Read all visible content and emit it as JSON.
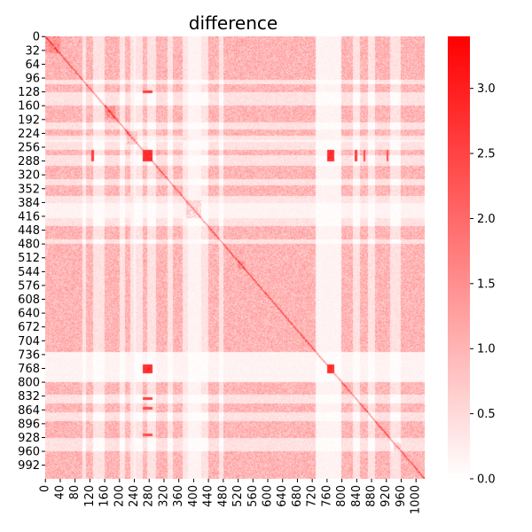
{
  "chart_data": {
    "type": "heatmap",
    "title": "difference",
    "xlabel": "",
    "ylabel": "",
    "n": 1024,
    "x_ticks": [
      "0",
      "40",
      "80",
      "120",
      "160",
      "200",
      "240",
      "280",
      "320",
      "360",
      "400",
      "440",
      "480",
      "520",
      "560",
      "600",
      "640",
      "680",
      "720",
      "760",
      "800",
      "840",
      "880",
      "920",
      "960",
      "1000"
    ],
    "y_ticks": [
      "0",
      "32",
      "64",
      "96",
      "128",
      "160",
      "192",
      "224",
      "256",
      "288",
      "320",
      "352",
      "384",
      "416",
      "448",
      "480",
      "512",
      "544",
      "576",
      "608",
      "640",
      "672",
      "704",
      "736",
      "768",
      "800",
      "832",
      "864",
      "896",
      "928",
      "960",
      "992"
    ],
    "colorbar": {
      "min": 0.0,
      "max": 3.4,
      "ticks": [
        "0.0",
        "0.5",
        "1.0",
        "1.5",
        "2.0",
        "2.5",
        "3.0"
      ],
      "low_color": "#ffffff",
      "high_color": "#ff0000"
    },
    "dense_bands": [
      [
        0,
        100
      ],
      [
        110,
        130
      ],
      [
        160,
        200
      ],
      [
        215,
        240
      ],
      [
        262,
        275
      ],
      [
        300,
        330
      ],
      [
        345,
        385
      ],
      [
        440,
        470
      ],
      [
        480,
        730
      ],
      [
        800,
        830
      ],
      [
        850,
        870
      ],
      [
        890,
        930
      ],
      [
        960,
        1024
      ]
    ],
    "sparse_bands": [
      [
        370,
        420
      ],
      [
        230,
        245
      ],
      [
        730,
        800
      ]
    ],
    "diagonal_blocks": [
      [
        0,
        40
      ],
      [
        160,
        190
      ],
      [
        220,
        250
      ],
      [
        380,
        420
      ],
      [
        520,
        540
      ],
      [
        940,
        960
      ]
    ],
    "hot_spots": [
      {
        "rows": [
          262,
          290
        ],
        "cols": [
          262,
          290
        ],
        "value": 3.0
      },
      {
        "rows": [
          262,
          290
        ],
        "cols": [
          760,
          780
        ],
        "value": 3.0
      },
      {
        "rows": [
          760,
          780
        ],
        "cols": [
          262,
          290
        ],
        "value": 3.0
      },
      {
        "rows": [
          760,
          780
        ],
        "cols": [
          760,
          780
        ],
        "value": 3.0
      },
      {
        "rows": [
          262,
          290
        ],
        "cols": [
          125,
          132
        ],
        "value": 2.8
      },
      {
        "rows": [
          125,
          132
        ],
        "cols": [
          262,
          290
        ],
        "value": 2.8
      },
      {
        "rows": [
          836,
          842
        ],
        "cols": [
          262,
          290
        ],
        "value": 2.8
      },
      {
        "rows": [
          262,
          290
        ],
        "cols": [
          836,
          842
        ],
        "value": 2.8
      },
      {
        "rows": [
          920,
          926
        ],
        "cols": [
          262,
          290
        ],
        "value": 2.6
      },
      {
        "rows": [
          262,
          290
        ],
        "cols": [
          920,
          926
        ],
        "value": 2.6
      },
      {
        "rows": [
          858,
          864
        ],
        "cols": [
          262,
          290
        ],
        "value": 2.6
      },
      {
        "rows": [
          262,
          290
        ],
        "cols": [
          858,
          864
        ],
        "value": 2.6
      }
    ]
  }
}
